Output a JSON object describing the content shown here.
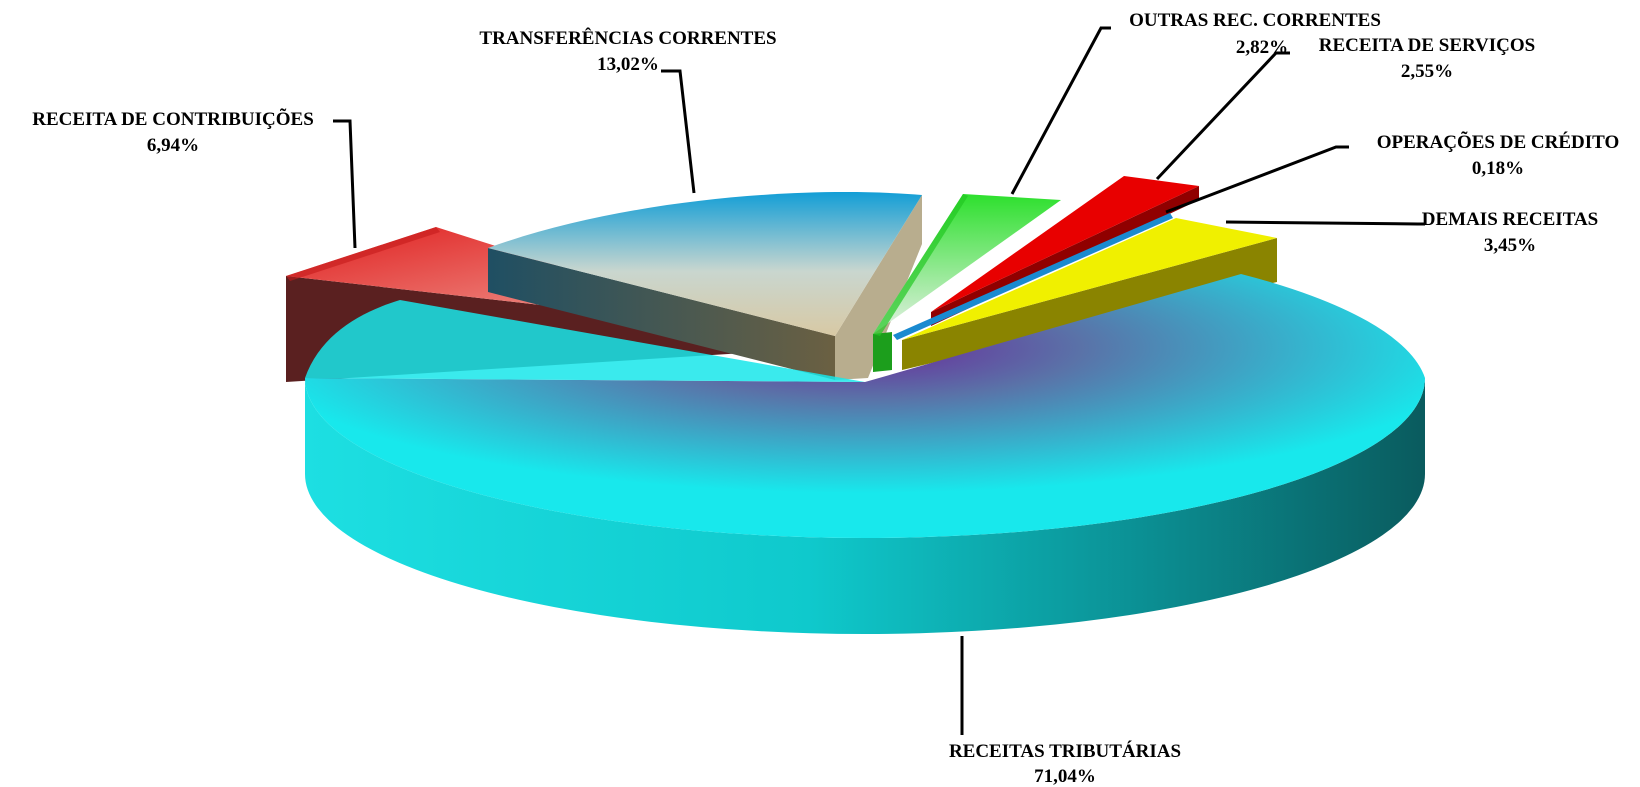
{
  "chart_data": {
    "type": "pie",
    "style": "3d-exploded",
    "title": "",
    "slices": [
      {
        "label": "RECEITAS TRIBUTÁRIAS",
        "value_label": "71,04%",
        "value": 71.04,
        "color": "#18e6e8"
      },
      {
        "label": "DEMAIS RECEITAS",
        "value_label": "3,45%",
        "value": 3.45,
        "color": "#f0f000"
      },
      {
        "label": "OPERAÇÕES DE CRÉDITO",
        "value_label": "0,18%",
        "value": 0.18,
        "color": "#1a9fd8"
      },
      {
        "label": "RECEITA DE SERVIÇOS",
        "value_label": "2,55%",
        "value": 2.55,
        "color": "#ee0000"
      },
      {
        "label": "OUTRAS REC. CORRENTES",
        "value_label": "2,82%",
        "value": 2.82,
        "color": "#2fd82f"
      },
      {
        "label": "TRANSFERÊNCIAS CORRENTES",
        "value_label": "13,02%",
        "value": 13.02,
        "color": "#1aa6d8"
      },
      {
        "label": "RECEITA DE CONTRIBUIÇÕES",
        "value_label": "6,94%",
        "value": 6.94,
        "color": "#ee2a2a"
      }
    ]
  }
}
